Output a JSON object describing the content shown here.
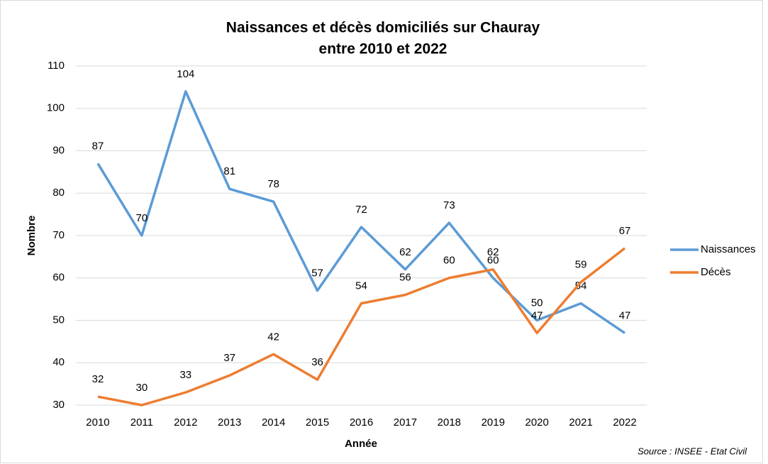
{
  "chart_data": {
    "type": "line",
    "title": [
      "Naissances et décès domiciliés sur Chauray",
      "entre 2010 et 2022"
    ],
    "x_label": "Année",
    "y_label": "Nombre",
    "source": "Source : INSEE - Etat Civil",
    "categories": [
      "2010",
      "2011",
      "2012",
      "2013",
      "2014",
      "2015",
      "2016",
      "2017",
      "2018",
      "2019",
      "2020",
      "2021",
      "2022"
    ],
    "series": [
      {
        "name": "Naissances",
        "color": "#5b9bd5",
        "values": [
          87,
          70,
          104,
          81,
          78,
          57,
          72,
          62,
          73,
          60,
          50,
          54,
          47
        ]
      },
      {
        "name": "Décès",
        "color": "#ed7d31",
        "values": [
          32,
          30,
          33,
          37,
          42,
          36,
          54,
          56,
          60,
          62,
          47,
          59,
          67
        ]
      }
    ],
    "ylim": [
      30,
      110
    ],
    "yticks": [
      30,
      40,
      50,
      60,
      70,
      80,
      90,
      100,
      110
    ],
    "grid": true,
    "legend": "right"
  }
}
